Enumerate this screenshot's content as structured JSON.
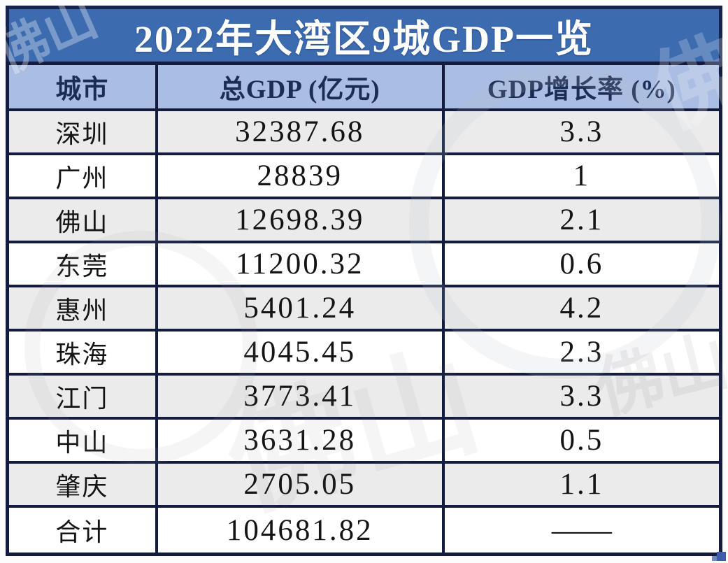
{
  "title": "2022年大湾区9城GDP一览",
  "colors": {
    "title_bg": "#3c6bb0",
    "title_border": "#16234c",
    "header_bg": "#a9bee2",
    "header_text": "#1b2c55",
    "table_border": "#131b3e",
    "alt_row_bg": "#ebebeb",
    "row_bg": "#ffffff",
    "cell_text": "#141414"
  },
  "chart_data": {
    "type": "table",
    "title": "2022年大湾区9城GDP一览",
    "columns": [
      "城市",
      "总GDP (亿元)",
      "GDP增长率 (%)"
    ],
    "rows": [
      [
        "深圳",
        "32387.68",
        "3.3"
      ],
      [
        "广州",
        "28839",
        "1"
      ],
      [
        "佛山",
        "12698.39",
        "2.1"
      ],
      [
        "东莞",
        "11200.32",
        "0.6"
      ],
      [
        "惠州",
        "5401.24",
        "4.2"
      ],
      [
        "珠海",
        "4045.45",
        "2.3"
      ],
      [
        "江门",
        "3773.41",
        "3.3"
      ],
      [
        "中山",
        "3631.28",
        "0.5"
      ],
      [
        "肇庆",
        "2705.05",
        "1.1"
      ],
      [
        "合计",
        "104681.82",
        "——"
      ]
    ]
  },
  "watermarks": {
    "top_left": "佛山",
    "top_right": "佛"
  }
}
